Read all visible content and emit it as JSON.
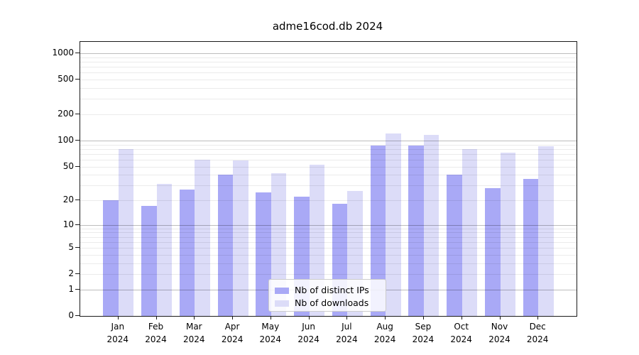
{
  "title": "adme16cod.db 2024",
  "legend": {
    "items": [
      {
        "label": "Nb of distinct IPs",
        "series_key": "ips"
      },
      {
        "label": "Nb of downloads",
        "series_key": "downloads"
      }
    ]
  },
  "colors": {
    "ips": "#a9a9f6",
    "downloads": "#dcdcf8",
    "grid_major": "rgba(0,0,0,0.26)",
    "grid_minor": "rgba(0,0,0,0.08)",
    "axis": "#1a1a1a"
  },
  "chart_data": {
    "type": "bar",
    "title": "adme16cod.db 2024",
    "categories": [
      "Jan",
      "Feb",
      "Mar",
      "Apr",
      "May",
      "Jun",
      "Jul",
      "Aug",
      "Sep",
      "Oct",
      "Nov",
      "Dec"
    ],
    "x_year_line": "2024",
    "series": [
      {
        "name": "Nb of distinct IPs",
        "values": [
          20,
          17,
          27,
          40,
          25,
          22,
          18,
          88,
          88,
          40,
          28,
          36
        ]
      },
      {
        "name": "Nb of downloads",
        "values": [
          80,
          31,
          60,
          59,
          42,
          52,
          26,
          120,
          116,
          79,
          72,
          86
        ]
      }
    ],
    "xlabel": "",
    "ylabel": "",
    "y_scale": "log10(value+1)",
    "y_tick_labels": [
      "1000",
      "500",
      "200",
      "100",
      "50",
      "20",
      "10",
      "5",
      "2",
      "1",
      "0"
    ],
    "y_tick_values": [
      1000,
      500,
      200,
      100,
      50,
      20,
      10,
      5,
      2,
      1,
      0
    ],
    "grid_major_values": [
      1,
      10,
      100,
      1000
    ],
    "grid_minor_values": [
      2,
      3,
      4,
      5,
      6,
      7,
      8,
      9,
      20,
      30,
      40,
      50,
      60,
      70,
      80,
      90,
      200,
      300,
      400,
      500,
      600,
      700,
      800,
      900
    ],
    "ylim": [
      0,
      1330
    ],
    "grid": "on, drawn above bars",
    "legend_position": "lower center"
  }
}
